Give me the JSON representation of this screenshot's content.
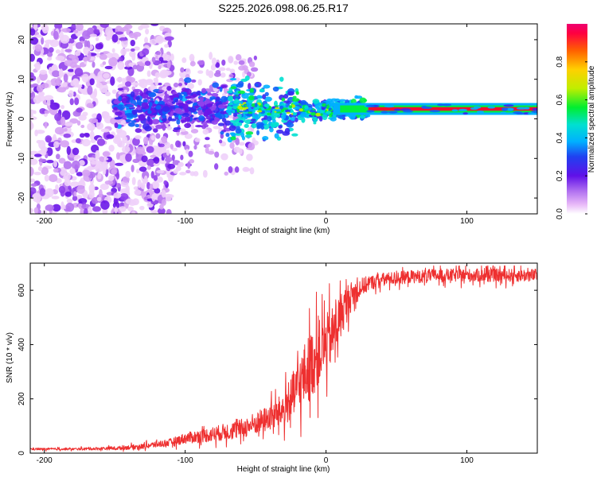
{
  "title": "S225.2026.098.06.25.R17",
  "chart_data": [
    {
      "type": "heatmap",
      "panel": "top",
      "title": "S225.2026.098.06.25.R17",
      "xlabel": "Height of straight line (km)",
      "ylabel": "Frequency (Hz)",
      "xlim": [
        -210,
        150
      ],
      "ylim": [
        -24,
        24
      ],
      "xticks": [
        -200,
        -100,
        0,
        100
      ],
      "yticks": [
        -20,
        -10,
        0,
        10,
        20
      ],
      "colorbar": {
        "label": "Normalized spectral amplitude",
        "range": [
          0,
          1
        ],
        "ticks": [
          "0.0",
          "0.2",
          "0.4",
          "0.6",
          "0.8"
        ],
        "colors": [
          "#ffffff",
          "#e8b8f8",
          "#a050e8",
          "#7a1ae8",
          "#3030f0",
          "#00a0ff",
          "#00e0d0",
          "#00ee40",
          "#c0ee00",
          "#ffd000",
          "#ff6000",
          "#ee0040"
        ]
      },
      "features": {
        "carrier_line": {
          "x_range": [
            30,
            150
          ],
          "frequency_hz": 2.5,
          "amplitude": 0.95
        },
        "tone_band_center_hz": {
          "points": [
            [
              -150,
              2.5
            ],
            [
              -100,
              3
            ],
            [
              -60,
              3
            ],
            [
              -30,
              2
            ],
            [
              -10,
              2
            ],
            [
              0,
              2.5
            ],
            [
              30,
              2.5
            ]
          ]
        },
        "scatter_region": {
          "x_range": [
            -210,
            -110
          ],
          "frequency_span_hz": [
            -24,
            24
          ]
        }
      }
    },
    {
      "type": "line",
      "panel": "bottom",
      "xlabel": "Height of straight line (km)",
      "ylabel": "SNR (10 * v/v)",
      "xlim": [
        -210,
        150
      ],
      "ylim": [
        0,
        700
      ],
      "xticks": [
        -200,
        -100,
        0,
        100
      ],
      "yticks": [
        0,
        200,
        400,
        600
      ],
      "series": [
        {
          "name": "SNR",
          "color": "#ee3030",
          "x": [
            -210,
            -180,
            -150,
            -130,
            -110,
            -100,
            -80,
            -60,
            -40,
            -30,
            -25,
            -20,
            -15,
            -10,
            -5,
            0,
            5,
            10,
            15,
            20,
            25,
            30,
            40,
            60,
            80,
            100,
            120,
            150
          ],
          "y": [
            15,
            15,
            18,
            25,
            40,
            55,
            70,
            90,
            130,
            160,
            200,
            240,
            290,
            330,
            370,
            400,
            440,
            500,
            560,
            590,
            610,
            625,
            640,
            650,
            655,
            655,
            655,
            655
          ],
          "noise_amplitude": [
            5,
            5,
            8,
            12,
            18,
            25,
            35,
            45,
            60,
            80,
            100,
            130,
            150,
            160,
            150,
            140,
            130,
            110,
            80,
            60,
            45,
            35,
            30,
            30,
            30,
            30,
            30,
            30
          ]
        }
      ]
    }
  ]
}
